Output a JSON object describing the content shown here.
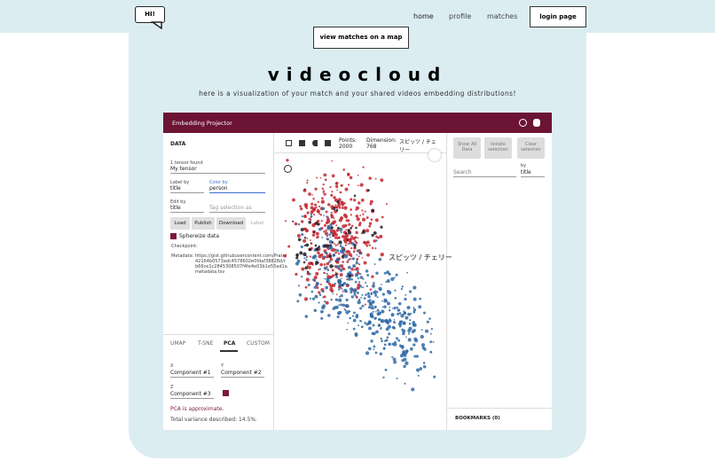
{
  "nav": {
    "logo": "HI!",
    "links": [
      "home",
      "profile",
      "matches"
    ],
    "login": "login page"
  },
  "map_button": "view matches on a map",
  "title": "videocloud",
  "subtitle": "here is a visualization of your match and your shared videos embedding distributions!",
  "projector": {
    "header": "Embedding Projector",
    "left": {
      "section": "DATA",
      "tensor_found": "1 tensor found",
      "tensor": "My tensor",
      "label_by": "Label by",
      "label_value": "title",
      "color_by": "Color by",
      "color_value": "person",
      "edit_by": "Edit by",
      "edit_value": "title",
      "tag": "Tag selection as",
      "buttons": [
        "Load",
        "Publish",
        "Download",
        "Label"
      ],
      "sphereize": "Sphereize data",
      "checkpoint": "Checkpoint:",
      "metadata": "Metadata:",
      "metadata_url": [
        "https://gist.githubusercontent.com/Pratei",
        "42164b0573adc4578602e0fdaf38828d/r",
        "b66ce1c2845308507f4fe4e03b1e55ad1a",
        "metadata.tsv"
      ],
      "tabs": [
        "UMAP",
        "T-SNE",
        "PCA",
        "CUSTOM"
      ],
      "x": "X",
      "x_value": "Component #1",
      "y": "Y",
      "y_value": "Component #2",
      "z": "Z",
      "z_value": "Component #3",
      "pca_note": "PCA is approximate.",
      "variance": "Total variance described: 14.5%."
    },
    "toolbar": {
      "points": "Points: 2000",
      "dimension": "Dimension: 768",
      "selected": "スピッツ / チェリー"
    },
    "plot_label": "スピッツ / チェリー",
    "right": {
      "buttons": [
        "Show All Data",
        "Isolate selection",
        "Clear selection"
      ],
      "search": "Search",
      "by": "by",
      "by_value": "title",
      "bookmarks": "BOOKMARKS (0)"
    }
  }
}
